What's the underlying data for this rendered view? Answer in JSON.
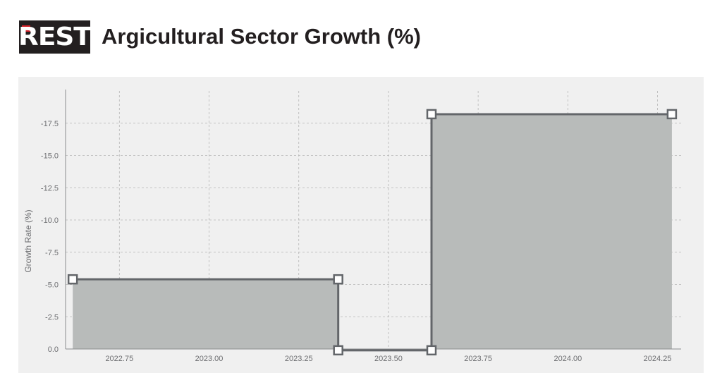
{
  "header": {
    "logo_text": "REST",
    "title": "Argicultural Sector Growth (%)"
  },
  "colors": {
    "fill": "#b8bbba",
    "line": "#63666a",
    "grid": "#b5b5b5",
    "panel": "#f0f0f0",
    "logo_bg": "#231f20",
    "logo_accent": "#d7222a"
  },
  "chart_data": {
    "type": "area",
    "title": "Argicultural Sector Growth (%)",
    "xlabel": "",
    "ylabel": "Growth Rate (%)",
    "xlim": [
      2022.6,
      2024.3
    ],
    "ylim": [
      0,
      -20
    ],
    "y_axis_inverted": true,
    "grid": true,
    "x_ticks": [
      2022.75,
      2023.0,
      2023.25,
      2023.5,
      2023.75,
      2024.0,
      2024.25
    ],
    "x_tick_labels": [
      "2022.75",
      "2023.00",
      "2023.25",
      "2023.50",
      "2023.75",
      "2024.00",
      "2024.25"
    ],
    "y_ticks": [
      0,
      -2.5,
      -5,
      -7.5,
      -10,
      -12.5,
      -15,
      -17.5
    ],
    "y_tick_labels": [
      "0.0",
      "-2.5",
      "-5.0",
      "-7.5",
      "-10.0",
      "-12.5",
      "-15.0",
      "-17.5"
    ],
    "series": [
      {
        "x": [
          2022.62,
          2023.36,
          2023.36,
          2023.62,
          2023.62,
          2024.29
        ],
        "y": [
          -5.4,
          -5.4,
          0.1,
          0.1,
          -18.2,
          -18.2
        ]
      }
    ]
  }
}
